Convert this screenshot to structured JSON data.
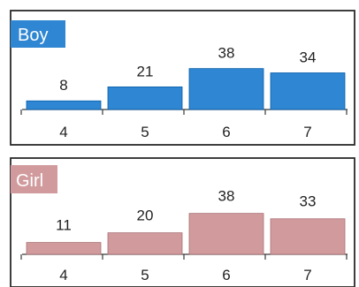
{
  "colors": {
    "boy": "#2f86d2",
    "girl": "#d19a9d",
    "border": "#2a2a2a"
  },
  "chart_data": [
    {
      "type": "bar",
      "title": "Boy",
      "xlabel": "",
      "ylabel": "",
      "categories": [
        "4",
        "5",
        "6",
        "7"
      ],
      "values": [
        8,
        21,
        38,
        34
      ],
      "ylim": [
        0,
        45
      ],
      "grid": false,
      "color": "#2f86d2"
    },
    {
      "type": "bar",
      "title": "Girl",
      "xlabel": "",
      "ylabel": "",
      "categories": [
        "4",
        "5",
        "6",
        "7"
      ],
      "values": [
        11,
        20,
        38,
        33
      ],
      "ylim": [
        0,
        45
      ],
      "grid": false,
      "color": "#d19a9d"
    }
  ]
}
